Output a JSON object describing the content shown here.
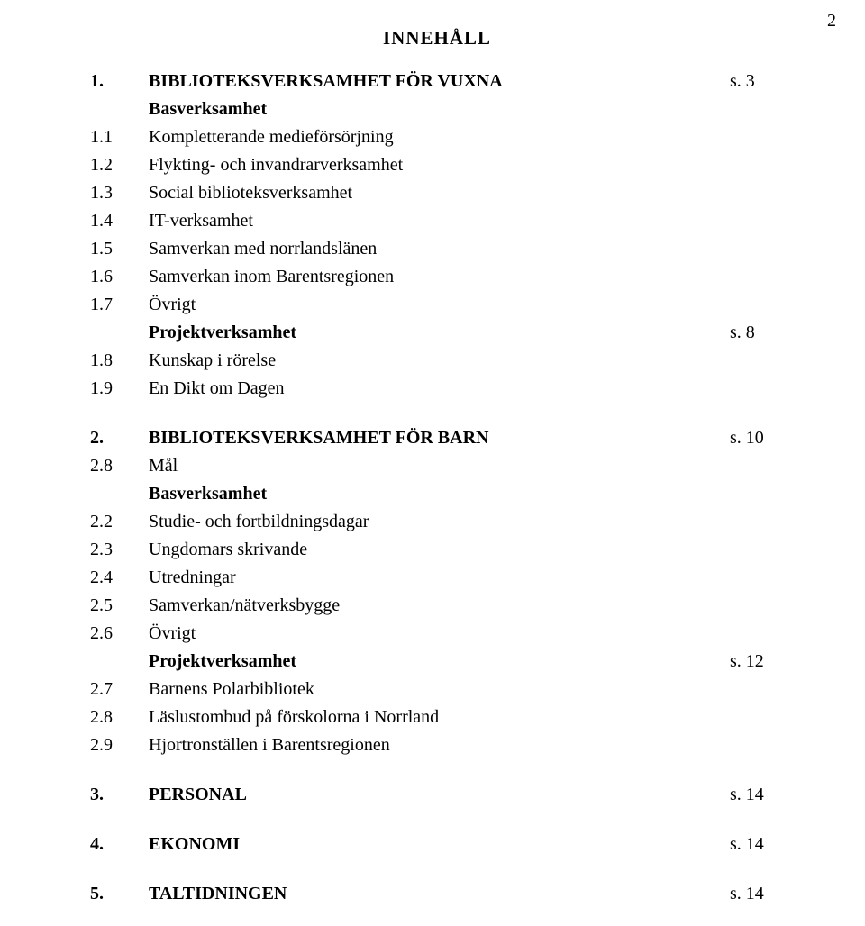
{
  "page_number": "2",
  "title": "INNEHÅLL",
  "rows": [
    {
      "num": "1.",
      "label": "BIBLIOTEKSVERKSAMHET FÖR VUXNA",
      "page": "s. 3",
      "bold_num": true,
      "bold_label": true
    },
    {
      "num": "",
      "label": "Basverksamhet",
      "page": "",
      "bold_label": true
    },
    {
      "num": "1.1",
      "label": "Kompletterande medieförsörjning",
      "page": ""
    },
    {
      "num": "1.2",
      "label": "Flykting- och invandrarverksamhet",
      "page": ""
    },
    {
      "num": "1.3",
      "label": "Social biblioteksverksamhet",
      "page": ""
    },
    {
      "num": "1.4",
      "label": "IT-verksamhet",
      "page": ""
    },
    {
      "num": "1.5",
      "label": "Samverkan med norrlandslänen",
      "page": ""
    },
    {
      "num": "1.6",
      "label": "Samverkan inom Barentsregionen",
      "page": ""
    },
    {
      "num": "1.7",
      "label": "Övrigt",
      "page": ""
    },
    {
      "num": "",
      "label": "Projektverksamhet",
      "page": "s. 8",
      "bold_label": true
    },
    {
      "num": "1.8",
      "label": "Kunskap i rörelse",
      "page": ""
    },
    {
      "num": "1.9",
      "label": "En Dikt om Dagen",
      "page": ""
    },
    {
      "gap": true
    },
    {
      "num": "2.",
      "label": "BIBLIOTEKSVERKSAMHET FÖR BARN",
      "page": "s. 10",
      "bold_num": true,
      "bold_label": true
    },
    {
      "num": "2.8",
      "label": "Mål",
      "page": ""
    },
    {
      "num": "",
      "label": "Basverksamhet",
      "page": "",
      "bold_label": true
    },
    {
      "num": "2.2",
      "label": "Studie- och fortbildningsdagar",
      "page": ""
    },
    {
      "num": "2.3",
      "label": "Ungdomars skrivande",
      "page": ""
    },
    {
      "num": "2.4",
      "label": "Utredningar",
      "page": ""
    },
    {
      "num": "2.5",
      "label": "Samverkan/nätverksbygge",
      "page": ""
    },
    {
      "num": "2.6",
      "label": "Övrigt",
      "page": ""
    },
    {
      "num": "",
      "label": "Projektverksamhet",
      "page": "s. 12",
      "bold_label": true
    },
    {
      "num": "2.7",
      "label": "Barnens Polarbibliotek",
      "page": ""
    },
    {
      "num": "2.8",
      "label": "Läslustombud på förskolorna i Norrland",
      "page": ""
    },
    {
      "num": "2.9",
      "label": "Hjortronställen i Barentsregionen",
      "page": ""
    },
    {
      "gap": true
    },
    {
      "num": "3.",
      "label": "PERSONAL",
      "page": "s. 14",
      "bold_num": true,
      "bold_label": true
    },
    {
      "gap": true
    },
    {
      "num": "4.",
      "label": "EKONOMI",
      "page": "s. 14",
      "bold_num": true,
      "bold_label": true
    },
    {
      "gap": true
    },
    {
      "num": "5.",
      "label": "TALTIDNINGEN",
      "page": "s. 14",
      "bold_num": true,
      "bold_label": true
    }
  ]
}
